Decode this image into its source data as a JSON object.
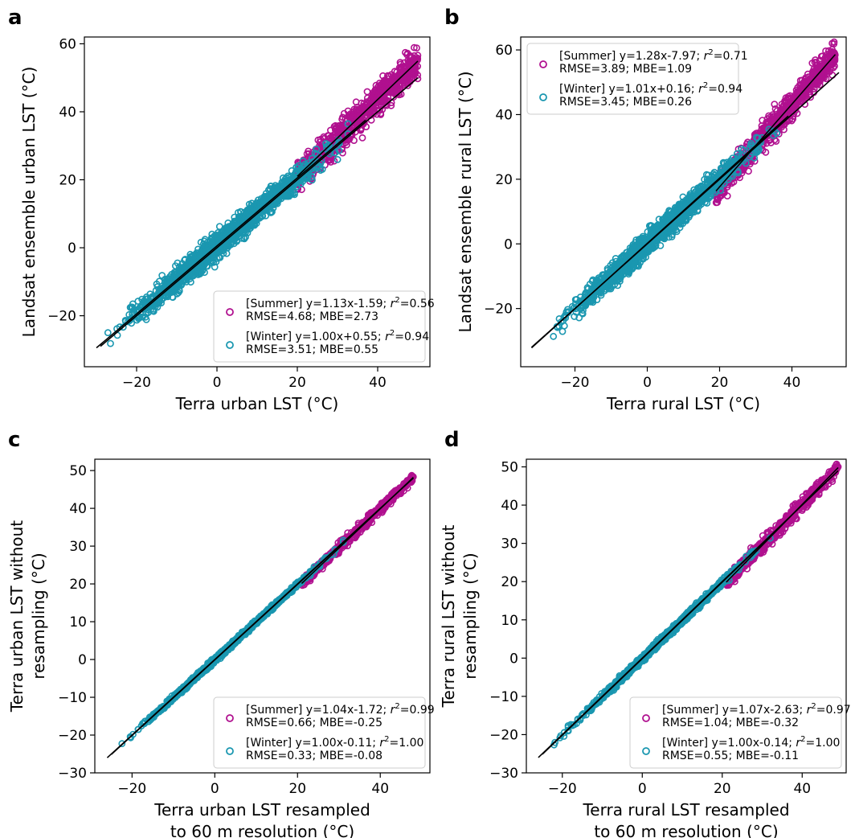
{
  "chart_data": [
    {
      "panel": "a",
      "type": "scatter",
      "xlabel": "Terra urban LST (°C)",
      "ylabel": "Landsat ensemble urban LST (°C)",
      "xlim": [
        -33,
        53
      ],
      "ylim": [
        -35,
        62
      ],
      "xticks": [
        -20,
        0,
        20,
        40
      ],
      "yticks": [
        -20,
        0,
        20,
        40,
        60
      ],
      "legend_loc": "lower-right",
      "series": [
        {
          "name": "Summer",
          "color": "#b0108f",
          "line1": "[Summer] y=1.13x-1.59; r²=0.56",
          "line2": "RMSE=4.68; MBE=2.73",
          "slope": 1.13,
          "intercept": -1.59,
          "x_range": [
            20,
            50
          ],
          "spread": 4.5
        },
        {
          "name": "Winter",
          "color": "#1a97b0",
          "line1": "[Winter] y=1.00x+0.55; r²=0.94",
          "line2": "RMSE=3.51; MBE=0.55",
          "slope": 1.0,
          "intercept": 0.55,
          "x_range": [
            -30,
            37
          ],
          "spread": 3.5
        }
      ],
      "one_to_one": {
        "x_range": [
          -29,
          50
        ]
      }
    },
    {
      "panel": "b",
      "type": "scatter",
      "xlabel": "Terra rural LST (°C)",
      "ylabel": "Landsat ensemble rural LST (°C)",
      "xlim": [
        -35,
        55
      ],
      "ylim": [
        -38,
        64
      ],
      "xticks": [
        -20,
        0,
        20,
        40
      ],
      "yticks": [
        -20,
        0,
        20,
        40,
        60
      ],
      "legend_loc": "upper-left",
      "series": [
        {
          "name": "Summer",
          "color": "#b0108f",
          "line1": "[Summer] y=1.28x-7.97; r²=0.71",
          "line2": "RMSE=3.89; MBE=1.09",
          "slope": 1.28,
          "intercept": -7.97,
          "x_range": [
            19,
            52
          ],
          "spread": 4.0
        },
        {
          "name": "Winter",
          "color": "#1a97b0",
          "line1": "[Winter] y=1.01x+0.16; r²=0.94",
          "line2": "RMSE=3.45; MBE=0.26",
          "slope": 1.01,
          "intercept": 0.16,
          "x_range": [
            -32,
            39
          ],
          "spread": 3.4
        }
      ],
      "one_to_one": {
        "x_range": [
          -32,
          53
        ]
      }
    },
    {
      "panel": "c",
      "type": "scatter",
      "xlabel": "Terra urban LST resampled|to 60 m resolution (°C)",
      "ylabel": "Terra urban LST without|resampling (°C)",
      "xlim": [
        -29,
        52
      ],
      "ylim": [
        -30,
        53
      ],
      "xticks": [
        -20,
        0,
        20,
        40
      ],
      "yticks": [
        -30,
        -20,
        -10,
        0,
        10,
        20,
        30,
        40,
        50
      ],
      "legend_loc": "lower-right",
      "series": [
        {
          "name": "Summer",
          "color": "#b0108f",
          "line1": "[Summer] y=1.04x-1.72; r²=0.99",
          "line2": "RMSE=0.66; MBE=-0.25",
          "slope": 1.04,
          "intercept": -1.72,
          "x_range": [
            21,
            48
          ],
          "spread": 1.2
        },
        {
          "name": "Winter",
          "color": "#1a97b0",
          "line1": "[Winter] y=1.00x-0.11; r²=1.00",
          "line2": "RMSE=0.33; MBE=-0.08",
          "slope": 1.0,
          "intercept": -0.11,
          "x_range": [
            -25,
            35
          ],
          "spread": 0.6
        }
      ],
      "one_to_one": {
        "x_range": [
          -26,
          48
        ]
      }
    },
    {
      "panel": "d",
      "type": "scatter",
      "xlabel": "Terra rural LST resampled|to 60 m resolution (°C)",
      "ylabel": "Terra rural LST without|resampling (°C)",
      "xlim": [
        -29,
        51
      ],
      "ylim": [
        -30,
        52
      ],
      "xticks": [
        -20,
        0,
        20,
        40
      ],
      "yticks": [
        -30,
        -20,
        -10,
        0,
        10,
        20,
        30,
        40,
        50
      ],
      "legend_loc": "lower-right",
      "series": [
        {
          "name": "Summer",
          "color": "#b0108f",
          "line1": "[Summer] y=1.07x-2.63; r²=0.97",
          "line2": "RMSE=1.04; MBE=-0.32",
          "slope": 1.07,
          "intercept": -2.63,
          "x_range": [
            21,
            49
          ],
          "spread": 1.8
        },
        {
          "name": "Winter",
          "color": "#1a97b0",
          "line1": "[Winter] y=1.00x-0.14; r²=1.00",
          "line2": "RMSE=0.55; MBE=-0.11",
          "slope": 1.0,
          "intercept": -0.14,
          "x_range": [
            -25,
            35
          ],
          "spread": 0.8
        }
      ],
      "one_to_one": {
        "x_range": [
          -26,
          49
        ]
      }
    }
  ]
}
